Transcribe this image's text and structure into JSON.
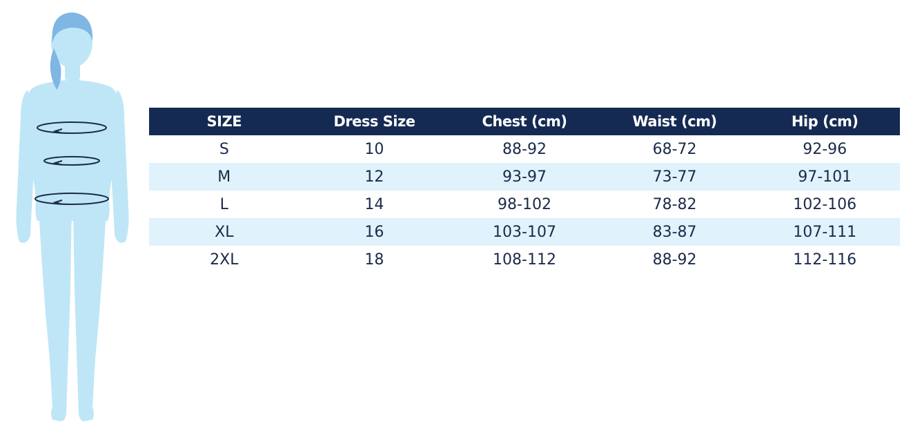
{
  "colors": {
    "header_bg": "#152a52",
    "header_text": "#ffffff",
    "stripe": "#e0f2fb",
    "body_figure": "#bfe6f6",
    "hair": "#7fb6e4"
  },
  "figure": {
    "icon": "woman-body-measurement-icon"
  },
  "table": {
    "headers": [
      "SIZE",
      "Dress Size",
      "Chest (cm)",
      "Waist (cm)",
      "Hip (cm)"
    ],
    "rows": [
      [
        "S",
        "10",
        "88-92",
        "68-72",
        "92-96"
      ],
      [
        "M",
        "12",
        "93-97",
        "73-77",
        "97-101"
      ],
      [
        "L",
        "14",
        "98-102",
        "78-82",
        "102-106"
      ],
      [
        "XL",
        "16",
        "103-107",
        "83-87",
        "107-111"
      ],
      [
        "2XL",
        "18",
        "108-112",
        "88-92",
        "112-116"
      ]
    ]
  }
}
